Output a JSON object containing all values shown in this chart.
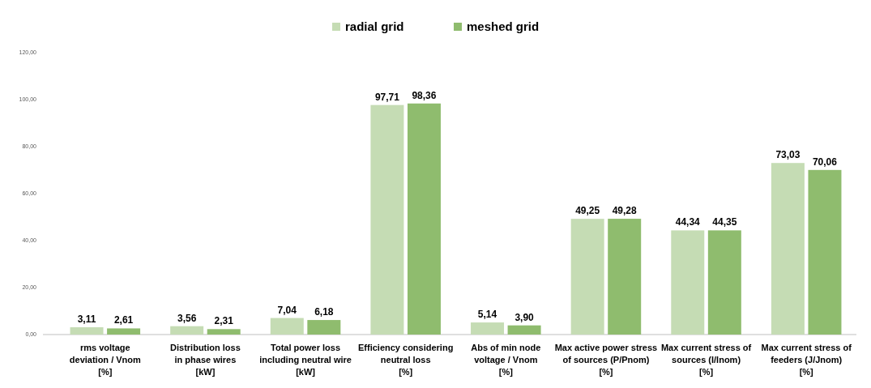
{
  "chart_data": {
    "type": "bar",
    "categories": [
      "rms voltage\ndeviation / Vnom\n[%]",
      "Distribution loss\nin phase wires\n[kW]",
      "Total power loss\nincluding neutral wire\n[kW]",
      "Efficiency considering\nneutral loss\n[%]",
      "Abs of min node\nvoltage / Vnom\n[%]",
      "Max active power stress\nof sources (P/Pnom)\n[%]",
      "Max current stress of\nsources (I/Inom)\n[%]",
      "Max current stress of\nfeeders (J/Jnom)\n[%]"
    ],
    "series": [
      {
        "name": "radial grid",
        "color": "#c5dcb4",
        "values": [
          3.11,
          3.56,
          7.04,
          97.71,
          5.14,
          49.25,
          44.34,
          73.03
        ],
        "value_labels": [
          "3,11",
          "3,56",
          "7,04",
          "97,71",
          "5,14",
          "49,25",
          "44,34",
          "73,03"
        ]
      },
      {
        "name": "meshed grid",
        "color": "#8fbc6e",
        "values": [
          2.61,
          2.31,
          6.18,
          98.36,
          3.9,
          49.28,
          44.35,
          70.06
        ],
        "value_labels": [
          "2,61",
          "2,31",
          "6,18",
          "98,36",
          "3,90",
          "49,28",
          "44,35",
          "70,06"
        ]
      }
    ],
    "ylim": [
      0,
      120
    ],
    "yticks": [
      {
        "value": 0,
        "label": "0,00"
      },
      {
        "value": 20,
        "label": "20,00"
      },
      {
        "value": 40,
        "label": "40,00"
      },
      {
        "value": 60,
        "label": "60,00"
      },
      {
        "value": 80,
        "label": "80,00"
      },
      {
        "value": 100,
        "label": "100,00"
      },
      {
        "value": 120,
        "label": "120,00"
      }
    ],
    "legend": "top",
    "grid": false
  }
}
